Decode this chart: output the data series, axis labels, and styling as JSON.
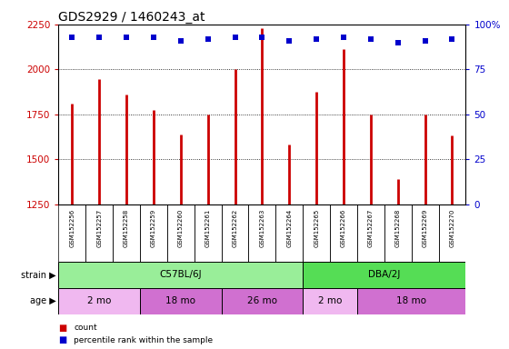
{
  "title": "GDS2929 / 1460243_at",
  "samples": [
    "GSM152256",
    "GSM152257",
    "GSM152258",
    "GSM152259",
    "GSM152260",
    "GSM152261",
    "GSM152262",
    "GSM152263",
    "GSM152264",
    "GSM152265",
    "GSM152266",
    "GSM152267",
    "GSM152268",
    "GSM152269",
    "GSM152270"
  ],
  "counts": [
    1810,
    1945,
    1860,
    1775,
    1640,
    1750,
    2000,
    2230,
    1580,
    1875,
    2115,
    1750,
    1390,
    1750,
    1635
  ],
  "percentile_ranks": [
    93,
    93,
    93,
    93,
    91,
    92,
    93,
    93,
    91,
    92,
    93,
    92,
    90,
    91,
    92
  ],
  "bar_color": "#cc0000",
  "dot_color": "#0000cc",
  "ylim_left": [
    1250,
    2250
  ],
  "ylim_right": [
    0,
    100
  ],
  "yticks_left": [
    1250,
    1500,
    1750,
    2000,
    2250
  ],
  "yticks_right": [
    0,
    25,
    50,
    75,
    100
  ],
  "strain_groups": [
    {
      "label": "C57BL/6J",
      "start": 0,
      "end": 8,
      "color": "#99ee99"
    },
    {
      "label": "DBA/2J",
      "start": 9,
      "end": 14,
      "color": "#55dd55"
    }
  ],
  "age_groups": [
    {
      "label": "2 mo",
      "start": 0,
      "end": 2,
      "color": "#f0b8f0"
    },
    {
      "label": "18 mo",
      "start": 3,
      "end": 5,
      "color": "#d070d0"
    },
    {
      "label": "26 mo",
      "start": 6,
      "end": 8,
      "color": "#d070d0"
    },
    {
      "label": "2 mo",
      "start": 9,
      "end": 10,
      "color": "#f0b8f0"
    },
    {
      "label": "18 mo",
      "start": 11,
      "end": 14,
      "color": "#d070d0"
    }
  ],
  "strain_label": "strain",
  "age_label": "age",
  "legend_count": "count",
  "legend_percentile": "percentile rank within the sample",
  "title_fontsize": 10,
  "axis_color_left": "#cc0000",
  "axis_color_right": "#0000cc",
  "sample_box_color": "#d8d8d8",
  "background_color": "#ffffff"
}
